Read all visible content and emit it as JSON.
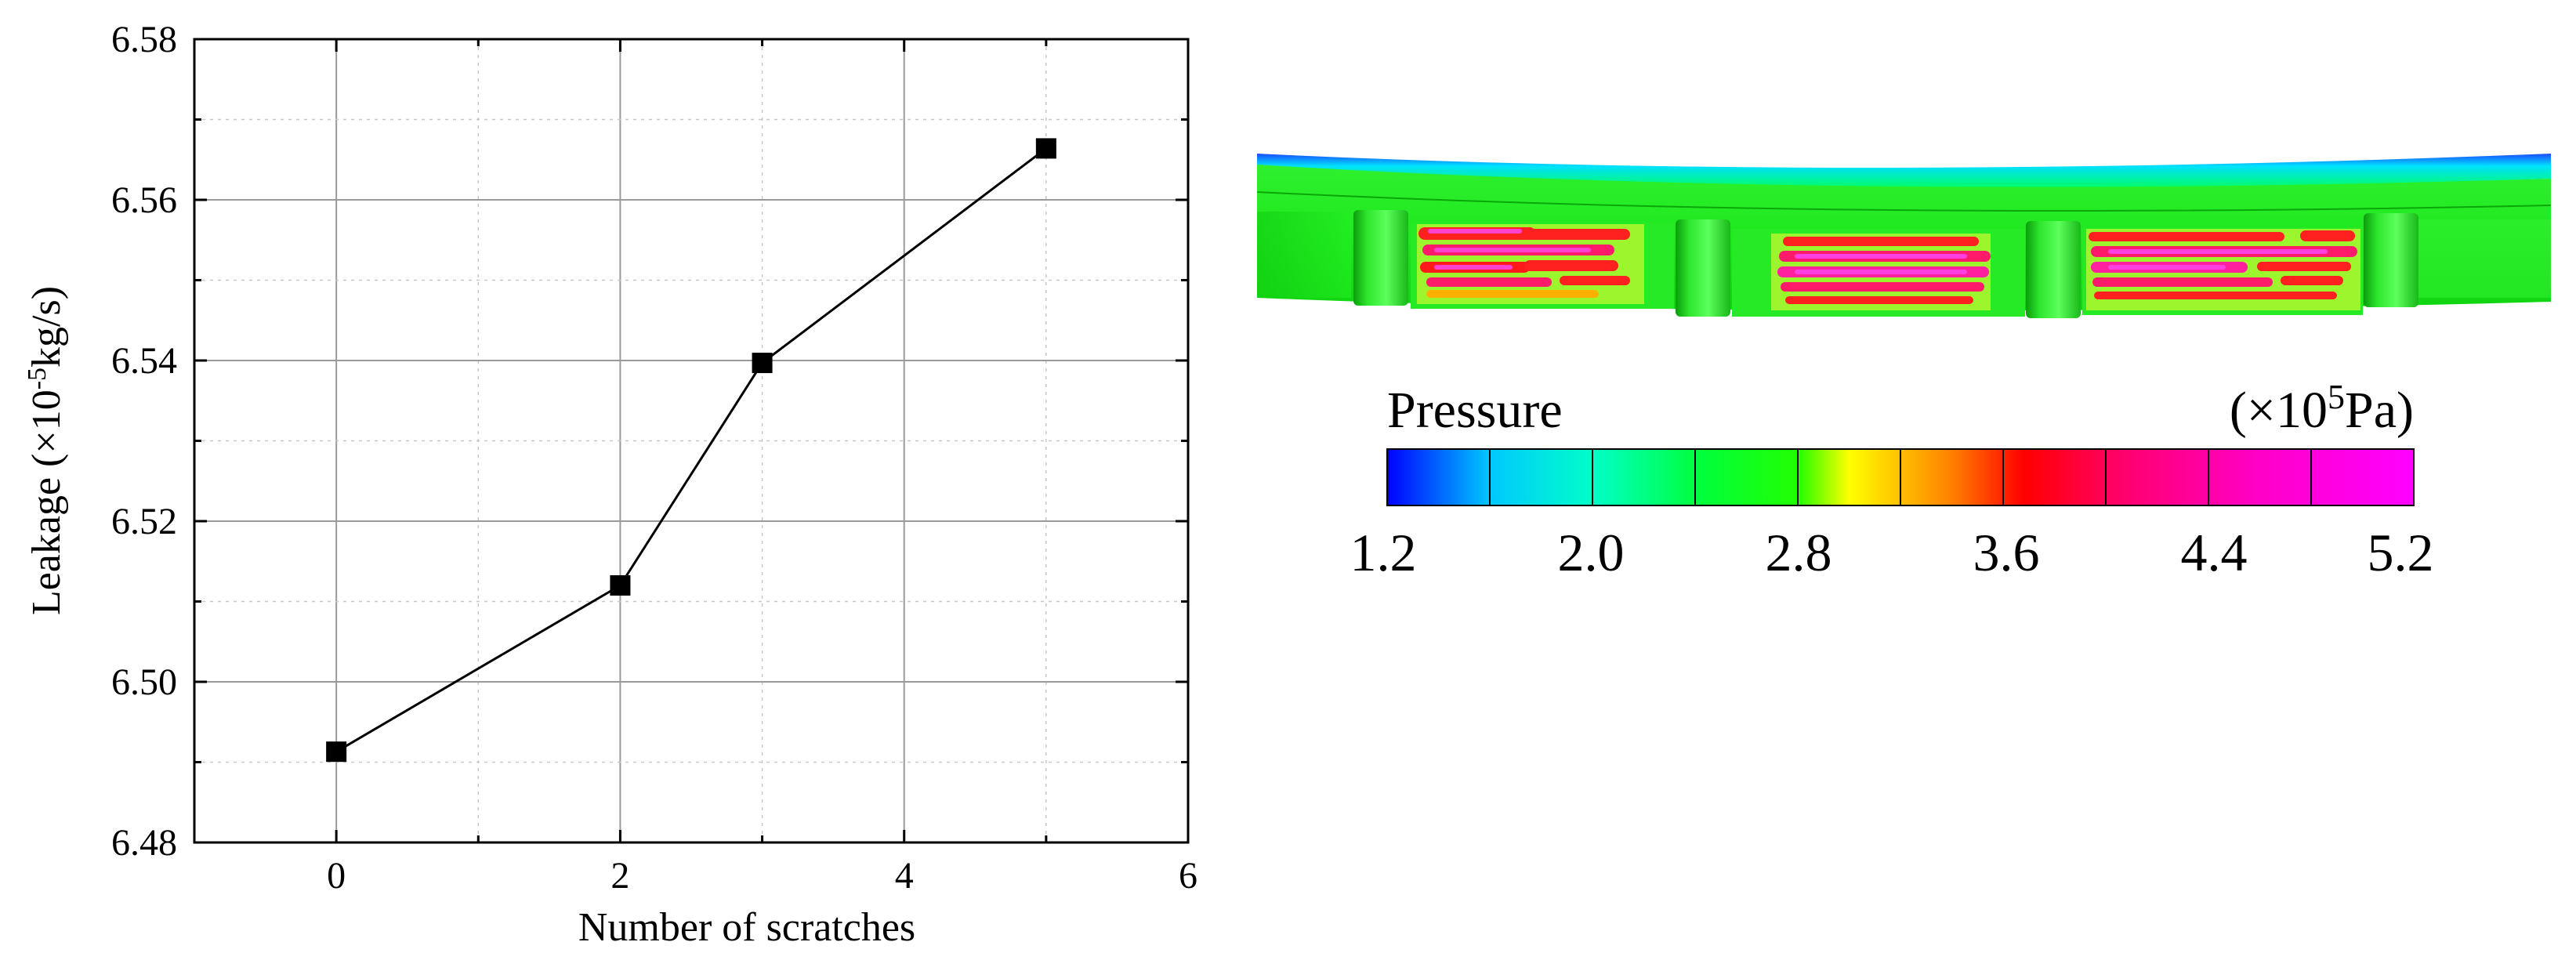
{
  "chart_data": [
    {
      "type": "line",
      "xlabel": "Number of scratches",
      "ylabel_prefix": "Leakage (×10",
      "ylabel_exp": "-5",
      "ylabel_suffix": "kg/s)",
      "xlim": [
        -1,
        6
      ],
      "ylim": [
        6.48,
        6.58
      ],
      "xticks": [
        0,
        2,
        4,
        6
      ],
      "xtick_labels": [
        "0",
        "2",
        "4",
        "6"
      ],
      "yticks": [
        6.48,
        6.5,
        6.52,
        6.54,
        6.56,
        6.58
      ],
      "ytick_labels": [
        "6.48",
        "6.50",
        "6.52",
        "6.54",
        "6.56",
        "6.58"
      ],
      "grid": true,
      "marker": "square",
      "series": [
        {
          "x": [
            0,
            2,
            3,
            5
          ],
          "y": [
            6.4913,
            6.512,
            6.5397,
            6.5664
          ]
        }
      ]
    },
    {
      "type": "heatmap",
      "legend_title": "Pressure",
      "unit_prefix": "(×10",
      "unit_exp": "5",
      "unit_suffix": "Pa)",
      "range": [
        1.2,
        5.2
      ],
      "tick_labels": [
        "1.2",
        "2.0",
        "2.8",
        "3.6",
        "4.4",
        "5.2"
      ],
      "colormap": [
        "#0000ff",
        "#00c8ff",
        "#00ffd0",
        "#00ff80",
        "#00ff00",
        "#40ff00",
        "#ffff00",
        "#ff8000",
        "#ff0000",
        "#ff0080",
        "#ff00c8",
        "#ff00ff"
      ]
    }
  ]
}
